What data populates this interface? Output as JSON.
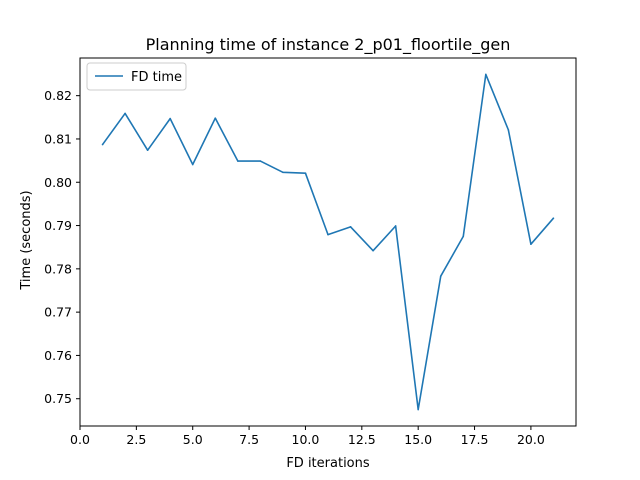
{
  "chart_data": {
    "type": "line",
    "title": "Planning time of instance 2_p01_floortile_gen",
    "xlabel": "FD iterations",
    "ylabel": "Time (seconds)",
    "xlim": [
      0.0,
      22.0
    ],
    "ylim": [
      0.7437,
      0.8287
    ],
    "x_ticks": [
      0.0,
      2.5,
      5.0,
      7.5,
      10.0,
      12.5,
      15.0,
      17.5,
      20.0
    ],
    "x_tick_labels": [
      "0.0",
      "2.5",
      "5.0",
      "7.5",
      "10.0",
      "12.5",
      "15.0",
      "17.5",
      "20.0"
    ],
    "y_ticks": [
      0.75,
      0.76,
      0.77,
      0.78,
      0.79,
      0.8,
      0.81,
      0.82
    ],
    "y_tick_labels": [
      "0.75",
      "0.76",
      "0.77",
      "0.78",
      "0.79",
      "0.80",
      "0.81",
      "0.82"
    ],
    "grid": false,
    "legend": {
      "position": "upper-left"
    },
    "series": [
      {
        "name": "FD time",
        "color": "#1f77b4",
        "x": [
          1,
          2,
          3,
          4,
          5,
          6,
          7,
          8,
          9,
          10,
          11,
          12,
          13,
          14,
          15,
          16,
          17,
          18,
          19,
          20,
          21
        ],
        "y": [
          0.8087,
          0.8159,
          0.8074,
          0.8147,
          0.8041,
          0.8148,
          0.8049,
          0.8049,
          0.8023,
          0.8021,
          0.7879,
          0.7897,
          0.7842,
          0.7899,
          0.7475,
          0.7783,
          0.7875,
          0.8249,
          0.8121,
          0.7857,
          0.7917
        ]
      }
    ]
  }
}
